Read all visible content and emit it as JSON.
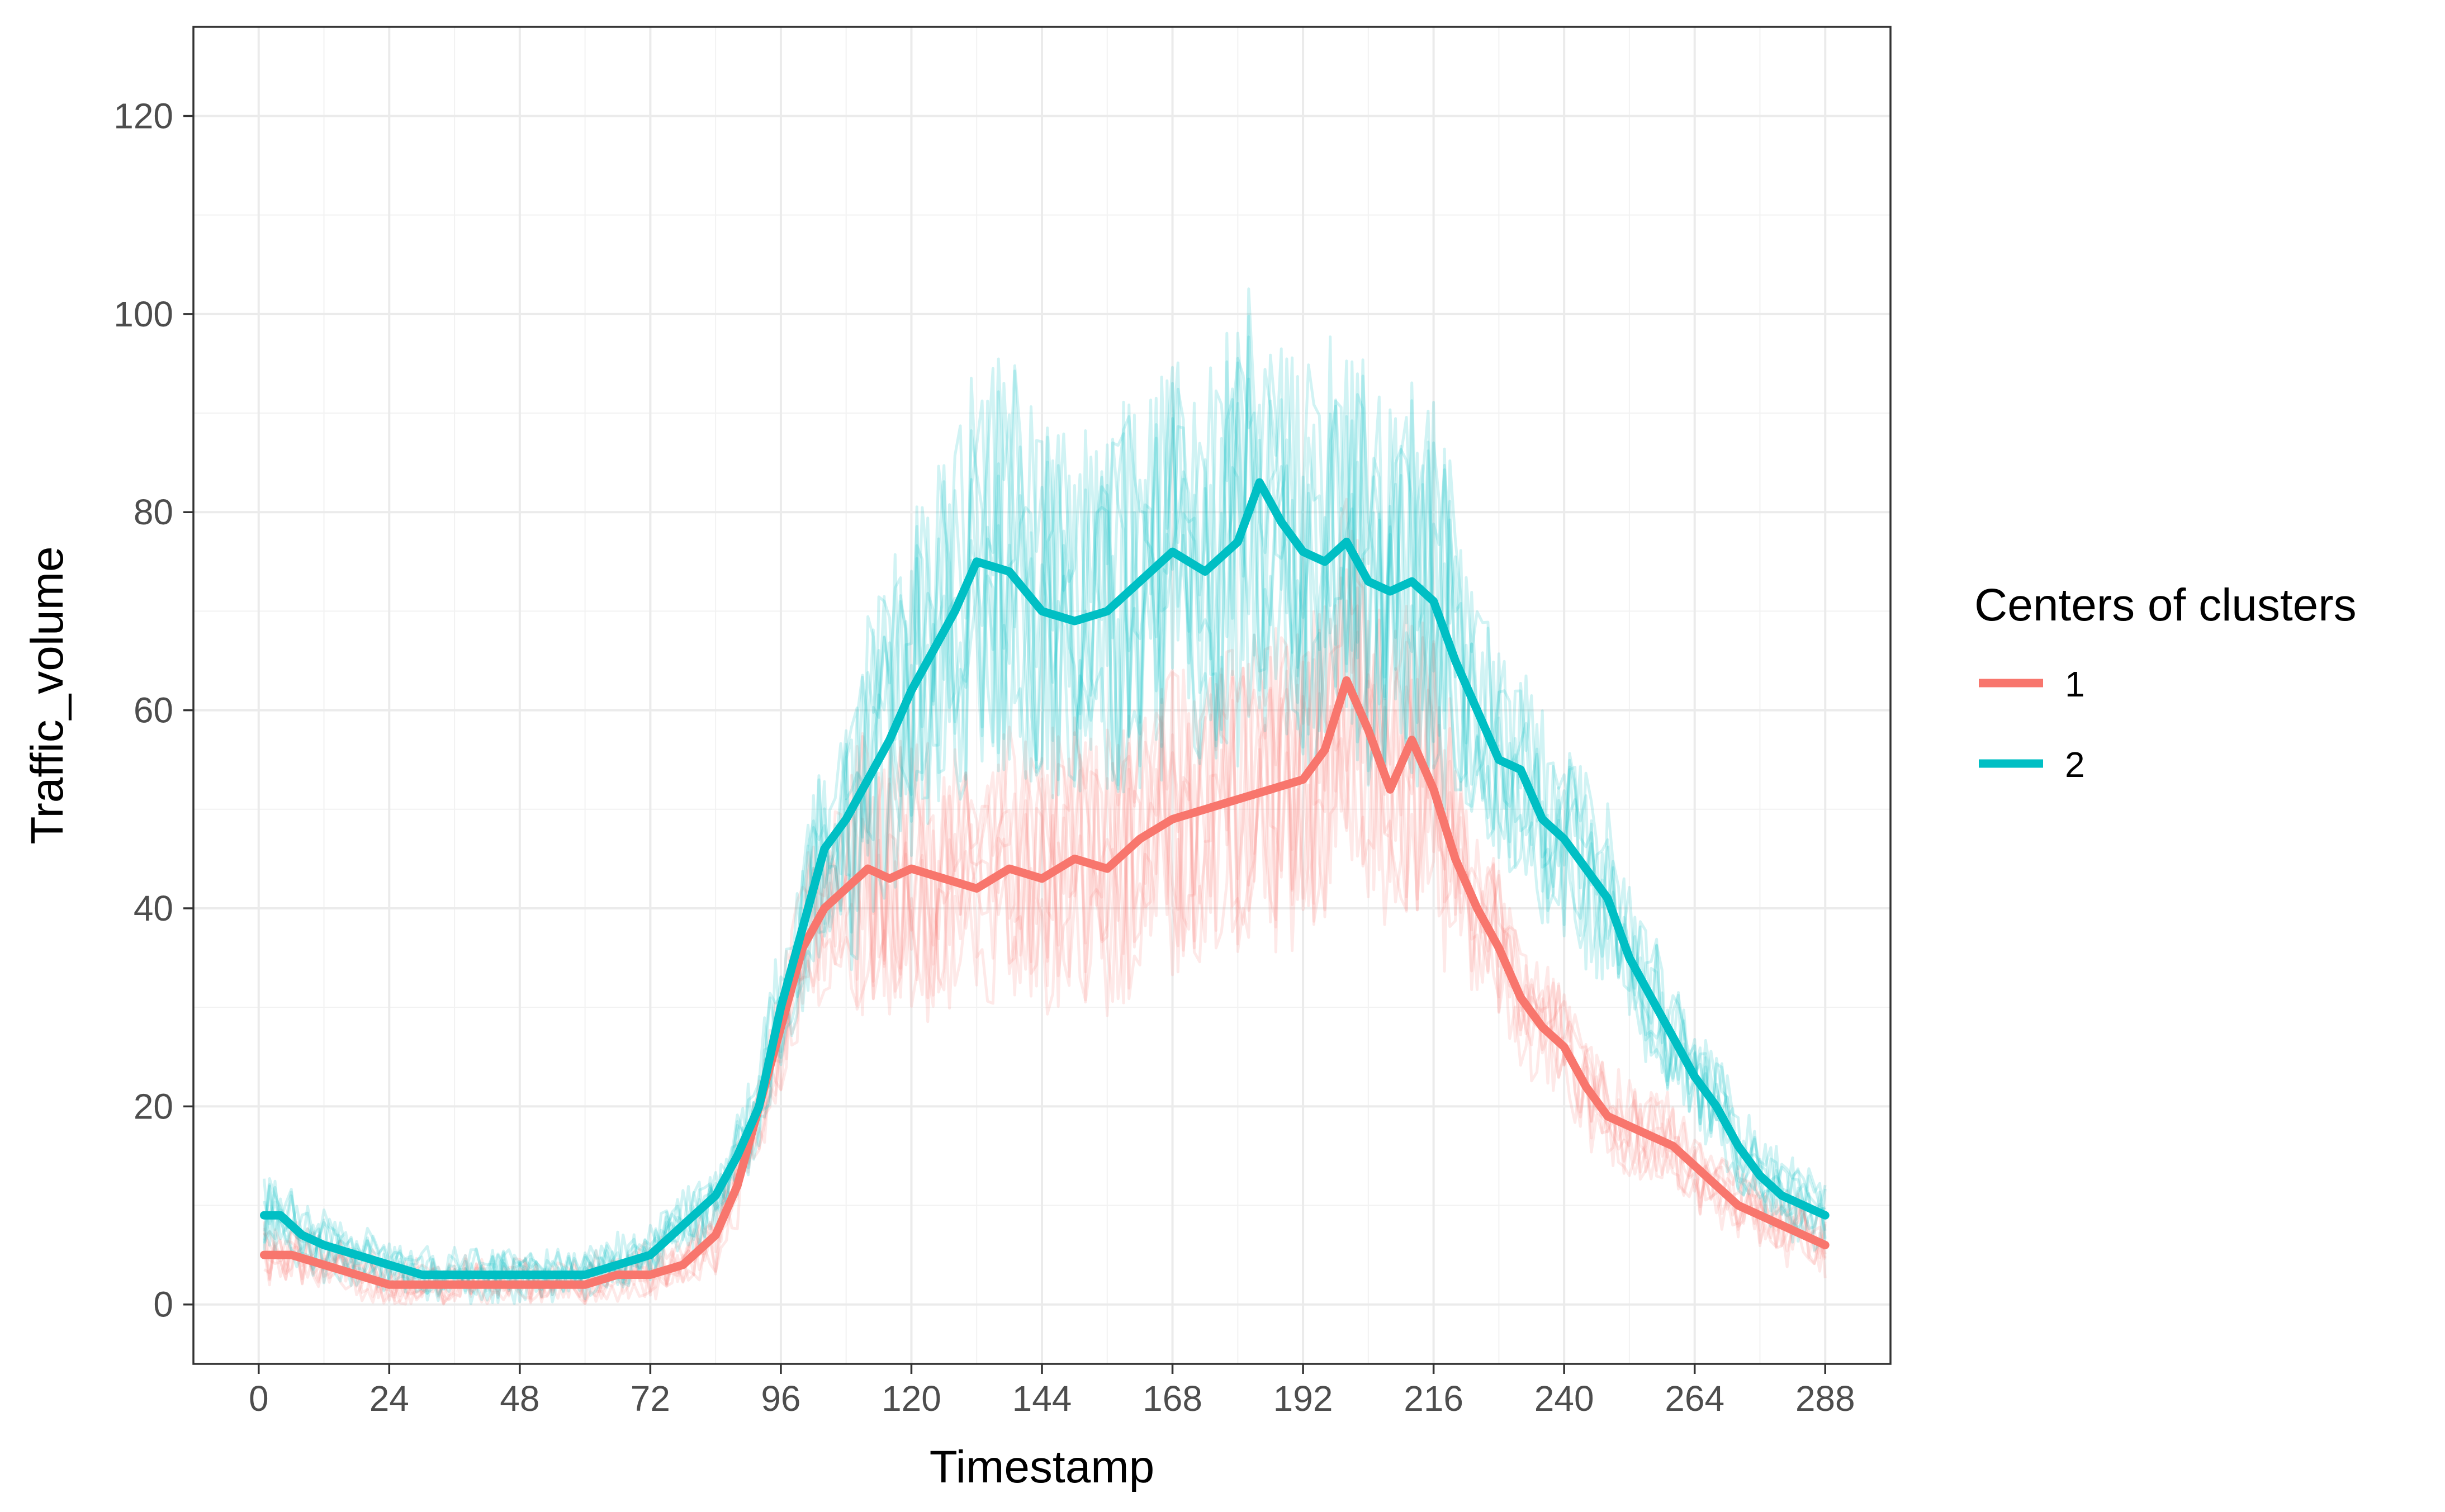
{
  "chart_data": {
    "type": "line",
    "title": "",
    "xlabel": "Timestamp",
    "ylabel": "Traffic_volume",
    "xlim": [
      -12,
      300
    ],
    "ylim": [
      -6,
      129
    ],
    "x_ticks": [
      0,
      24,
      48,
      72,
      96,
      120,
      144,
      168,
      192,
      216,
      240,
      264,
      288
    ],
    "y_ticks": [
      0,
      20,
      40,
      60,
      80,
      100,
      120
    ],
    "grid": true,
    "legend": {
      "title": "Centers of clusters",
      "position": "right",
      "entries": [
        "1",
        "2"
      ]
    },
    "series": [
      {
        "name": "1",
        "color": "#F8766D",
        "x": [
          1,
          6,
          12,
          18,
          24,
          30,
          36,
          42,
          48,
          54,
          60,
          66,
          72,
          78,
          84,
          88,
          92,
          96,
          100,
          104,
          108,
          112,
          116,
          120,
          126,
          132,
          138,
          144,
          150,
          156,
          162,
          168,
          174,
          180,
          186,
          192,
          196,
          200,
          204,
          208,
          212,
          216,
          220,
          224,
          228,
          232,
          236,
          240,
          244,
          248,
          252,
          256,
          260,
          264,
          268,
          272,
          276,
          280,
          284,
          288
        ],
        "y": [
          5,
          5,
          4,
          3,
          2,
          2,
          2,
          2,
          2,
          2,
          2,
          3,
          3,
          4,
          7,
          12,
          20,
          28,
          36,
          40,
          42,
          44,
          43,
          44,
          43,
          42,
          44,
          43,
          45,
          44,
          47,
          49,
          50,
          51,
          52,
          53,
          56,
          63,
          58,
          52,
          57,
          52,
          45,
          40,
          36,
          31,
          28,
          26,
          22,
          19,
          18,
          17,
          16,
          14,
          12,
          10,
          9,
          8,
          7,
          6
        ]
      },
      {
        "name": "2",
        "color": "#00BFC4",
        "x": [
          1,
          4,
          8,
          12,
          18,
          24,
          30,
          36,
          42,
          48,
          54,
          60,
          66,
          72,
          78,
          84,
          88,
          92,
          96,
          100,
          104,
          108,
          112,
          116,
          120,
          124,
          128,
          132,
          138,
          144,
          150,
          156,
          162,
          168,
          174,
          180,
          184,
          188,
          192,
          196,
          200,
          204,
          208,
          212,
          216,
          220,
          224,
          228,
          232,
          236,
          240,
          244,
          248,
          252,
          256,
          260,
          264,
          268,
          272,
          276,
          280,
          284,
          288
        ],
        "y": [
          9,
          9,
          7,
          6,
          5,
          4,
          3,
          3,
          3,
          3,
          3,
          3,
          4,
          5,
          8,
          11,
          15,
          20,
          30,
          38,
          46,
          49,
          53,
          57,
          62,
          66,
          70,
          75,
          74,
          70,
          69,
          70,
          73,
          76,
          74,
          77,
          83,
          79,
          76,
          75,
          77,
          73,
          72,
          73,
          71,
          65,
          60,
          55,
          54,
          49,
          47,
          44,
          41,
          35,
          31,
          27,
          23,
          20,
          16,
          13,
          11,
          10,
          9
        ]
      }
    ]
  }
}
